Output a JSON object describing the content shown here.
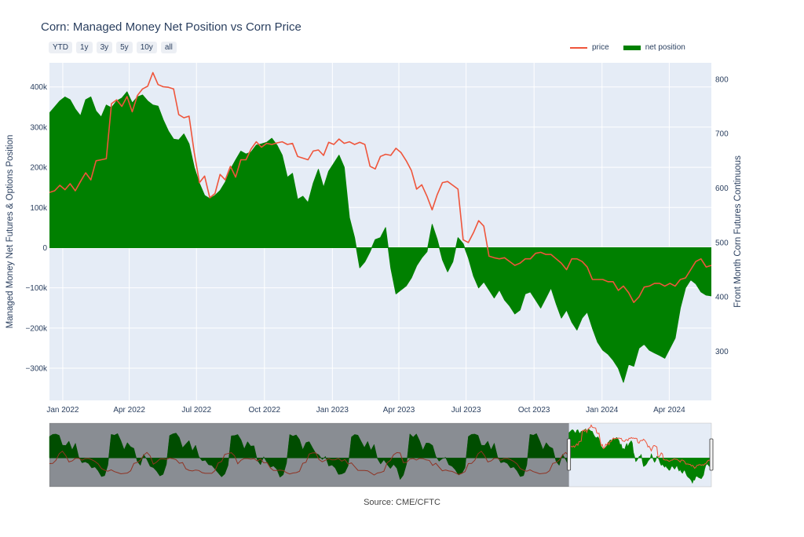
{
  "title": "Corn: Managed Money Net Position vs Corn Price",
  "range_buttons": [
    "YTD",
    "1y",
    "3y",
    "5y",
    "10y",
    "all"
  ],
  "legend": [
    {
      "name": "price",
      "color": "#ef553b"
    },
    {
      "name": "net position",
      "color": "#008000"
    }
  ],
  "source": "Source: CME/CFTC",
  "chart_data": {
    "type": "area",
    "x_axis": {
      "type": "date",
      "range": [
        "2021-12-14",
        "2024-05-28"
      ],
      "ticks": [
        {
          "date": "2022-01-01",
          "label": "Jan 2022"
        },
        {
          "date": "2022-04-01",
          "label": "Apr 2022"
        },
        {
          "date": "2022-07-01",
          "label": "Jul 2022"
        },
        {
          "date": "2022-10-01",
          "label": "Oct 2022"
        },
        {
          "date": "2023-01-01",
          "label": "Jan 2023"
        },
        {
          "date": "2023-04-01",
          "label": "Apr 2023"
        },
        {
          "date": "2023-07-01",
          "label": "Jul 2023"
        },
        {
          "date": "2023-10-01",
          "label": "Oct 2023"
        },
        {
          "date": "2024-01-01",
          "label": "Jan 2024"
        },
        {
          "date": "2024-04-01",
          "label": "Apr 2024"
        }
      ]
    },
    "y_left": {
      "label": "Managed Money Net Futures & Options Position",
      "range": [
        -380000,
        460000
      ],
      "ticks": [
        {
          "value": 400000,
          "label": "400k"
        },
        {
          "value": 300000,
          "label": "300k"
        },
        {
          "value": 200000,
          "label": "200k"
        },
        {
          "value": 100000,
          "label": "100k"
        },
        {
          "value": 0,
          "label": "0"
        },
        {
          "value": -100000,
          "label": "−100k"
        },
        {
          "value": -200000,
          "label": "−200k"
        },
        {
          "value": -300000,
          "label": "−300k"
        }
      ]
    },
    "y_right": {
      "label": "Front Month Corn Futures Continuous",
      "range": [
        210,
        830
      ],
      "ticks": [
        {
          "value": 800,
          "label": "800"
        },
        {
          "value": 700,
          "label": "700"
        },
        {
          "value": 600,
          "label": "600"
        },
        {
          "value": 500,
          "label": "500"
        },
        {
          "value": 400,
          "label": "400"
        },
        {
          "value": 300,
          "label": "300"
        }
      ]
    },
    "series": [
      {
        "name": "net position",
        "axis": "left",
        "type": "area",
        "color": "#008000",
        "x": [
          "2021-12-14",
          "2021-12-21",
          "2021-12-28",
          "2022-01-04",
          "2022-01-11",
          "2022-01-18",
          "2022-01-25",
          "2022-02-01",
          "2022-02-08",
          "2022-02-15",
          "2022-02-22",
          "2022-03-01",
          "2022-03-08",
          "2022-03-15",
          "2022-03-22",
          "2022-03-29",
          "2022-04-05",
          "2022-04-12",
          "2022-04-19",
          "2022-04-26",
          "2022-05-03",
          "2022-05-10",
          "2022-05-17",
          "2022-05-24",
          "2022-05-31",
          "2022-06-07",
          "2022-06-14",
          "2022-06-21",
          "2022-06-28",
          "2022-07-05",
          "2022-07-12",
          "2022-07-19",
          "2022-07-26",
          "2022-08-02",
          "2022-08-09",
          "2022-08-16",
          "2022-08-23",
          "2022-08-30",
          "2022-09-06",
          "2022-09-13",
          "2022-09-20",
          "2022-09-27",
          "2022-10-04",
          "2022-10-11",
          "2022-10-18",
          "2022-10-25",
          "2022-11-01",
          "2022-11-08",
          "2022-11-15",
          "2022-11-22",
          "2022-11-29",
          "2022-12-06",
          "2022-12-13",
          "2022-12-20",
          "2022-12-27",
          "2023-01-03",
          "2023-01-10",
          "2023-01-17",
          "2023-01-24",
          "2023-01-31",
          "2023-02-07",
          "2023-02-14",
          "2023-02-21",
          "2023-02-28",
          "2023-03-07",
          "2023-03-14",
          "2023-03-21",
          "2023-03-28",
          "2023-04-04",
          "2023-04-11",
          "2023-04-18",
          "2023-04-25",
          "2023-05-02",
          "2023-05-09",
          "2023-05-16",
          "2023-05-23",
          "2023-05-30",
          "2023-06-06",
          "2023-06-13",
          "2023-06-20",
          "2023-06-27",
          "2023-07-04",
          "2023-07-11",
          "2023-07-18",
          "2023-07-25",
          "2023-08-01",
          "2023-08-08",
          "2023-08-15",
          "2023-08-22",
          "2023-08-29",
          "2023-09-05",
          "2023-09-12",
          "2023-09-19",
          "2023-09-26",
          "2023-10-03",
          "2023-10-10",
          "2023-10-17",
          "2023-10-24",
          "2023-10-31",
          "2023-11-07",
          "2023-11-14",
          "2023-11-21",
          "2023-11-28",
          "2023-12-05",
          "2023-12-12",
          "2023-12-19",
          "2023-12-26",
          "2024-01-02",
          "2024-01-09",
          "2024-01-16",
          "2024-01-23",
          "2024-01-30",
          "2024-02-06",
          "2024-02-13",
          "2024-02-20",
          "2024-02-27",
          "2024-03-05",
          "2024-03-12",
          "2024-03-19",
          "2024-03-26",
          "2024-04-02",
          "2024-04-09",
          "2024-04-16",
          "2024-04-23",
          "2024-04-30",
          "2024-05-07",
          "2024-05-14",
          "2024-05-21",
          "2024-05-28"
        ],
        "values": [
          335000,
          350000,
          365000,
          375000,
          368000,
          345000,
          328000,
          368000,
          375000,
          340000,
          325000,
          355000,
          348000,
          365000,
          372000,
          388000,
          360000,
          375000,
          380000,
          365000,
          355000,
          352000,
          318000,
          290000,
          270000,
          268000,
          283000,
          258000,
          200000,
          160000,
          130000,
          122000,
          130000,
          142000,
          163000,
          195000,
          218000,
          240000,
          233000,
          238000,
          255000,
          258000,
          262000,
          272000,
          255000,
          230000,
          175000,
          185000,
          120000,
          128000,
          112000,
          160000,
          195000,
          150000,
          190000,
          210000,
          230000,
          200000,
          75000,
          25000,
          -50000,
          -35000,
          -10000,
          20000,
          25000,
          50000,
          -50000,
          -115000,
          -105000,
          -95000,
          -75000,
          -45000,
          -25000,
          -10000,
          58000,
          20000,
          -30000,
          -60000,
          -35000,
          25000,
          10000,
          -25000,
          -70000,
          -100000,
          -85000,
          -105000,
          -125000,
          -105000,
          -130000,
          -145000,
          -165000,
          -155000,
          -115000,
          -110000,
          -130000,
          -150000,
          -125000,
          -100000,
          -140000,
          -175000,
          -155000,
          -185000,
          -205000,
          -175000,
          -160000,
          -200000,
          -235000,
          -255000,
          -265000,
          -280000,
          -300000,
          -335000,
          -290000,
          -295000,
          -250000,
          -240000,
          -255000,
          -262000,
          -268000,
          -275000,
          -250000,
          -225000,
          -150000,
          -100000,
          -80000,
          -90000,
          -110000,
          -118000,
          -120000
        ]
      },
      {
        "name": "price",
        "axis": "right",
        "type": "line",
        "color": "#ef553b",
        "x": [
          "2021-12-14",
          "2021-12-21",
          "2021-12-28",
          "2022-01-04",
          "2022-01-11",
          "2022-01-18",
          "2022-01-25",
          "2022-02-01",
          "2022-02-08",
          "2022-02-15",
          "2022-02-22",
          "2022-03-01",
          "2022-03-08",
          "2022-03-15",
          "2022-03-22",
          "2022-03-29",
          "2022-04-05",
          "2022-04-12",
          "2022-04-19",
          "2022-04-26",
          "2022-05-03",
          "2022-05-10",
          "2022-05-17",
          "2022-05-24",
          "2022-05-31",
          "2022-06-07",
          "2022-06-14",
          "2022-06-21",
          "2022-06-28",
          "2022-07-05",
          "2022-07-12",
          "2022-07-19",
          "2022-07-26",
          "2022-08-02",
          "2022-08-09",
          "2022-08-16",
          "2022-08-23",
          "2022-08-30",
          "2022-09-06",
          "2022-09-13",
          "2022-09-20",
          "2022-09-27",
          "2022-10-04",
          "2022-10-11",
          "2022-10-18",
          "2022-10-25",
          "2022-11-01",
          "2022-11-08",
          "2022-11-15",
          "2022-11-22",
          "2022-11-29",
          "2022-12-06",
          "2022-12-13",
          "2022-12-20",
          "2022-12-27",
          "2023-01-03",
          "2023-01-10",
          "2023-01-17",
          "2023-01-24",
          "2023-01-31",
          "2023-02-07",
          "2023-02-14",
          "2023-02-21",
          "2023-02-28",
          "2023-03-07",
          "2023-03-14",
          "2023-03-21",
          "2023-03-28",
          "2023-04-04",
          "2023-04-11",
          "2023-04-18",
          "2023-04-25",
          "2023-05-02",
          "2023-05-09",
          "2023-05-16",
          "2023-05-23",
          "2023-05-30",
          "2023-06-06",
          "2023-06-13",
          "2023-06-20",
          "2023-06-27",
          "2023-07-04",
          "2023-07-11",
          "2023-07-18",
          "2023-07-25",
          "2023-08-01",
          "2023-08-08",
          "2023-08-15",
          "2023-08-22",
          "2023-08-29",
          "2023-09-05",
          "2023-09-12",
          "2023-09-19",
          "2023-09-26",
          "2023-10-03",
          "2023-10-10",
          "2023-10-17",
          "2023-10-24",
          "2023-10-31",
          "2023-11-07",
          "2023-11-14",
          "2023-11-21",
          "2023-11-28",
          "2023-12-05",
          "2023-12-12",
          "2023-12-19",
          "2023-12-26",
          "2024-01-02",
          "2024-01-09",
          "2024-01-16",
          "2024-01-23",
          "2024-01-30",
          "2024-02-06",
          "2024-02-13",
          "2024-02-20",
          "2024-02-27",
          "2024-03-05",
          "2024-03-12",
          "2024-03-19",
          "2024-03-26",
          "2024-04-02",
          "2024-04-09",
          "2024-04-16",
          "2024-04-23",
          "2024-04-30",
          "2024-05-07",
          "2024-05-14",
          "2024-05-21",
          "2024-05-28"
        ],
        "values": [
          592,
          595,
          605,
          597,
          608,
          595,
          612,
          628,
          615,
          650,
          652,
          654,
          755,
          762,
          750,
          768,
          740,
          770,
          782,
          787,
          812,
          790,
          786,
          785,
          782,
          735,
          729,
          732,
          665,
          610,
          622,
          582,
          590,
          625,
          615,
          640,
          620,
          652,
          652,
          672,
          685,
          675,
          682,
          680,
          683,
          685,
          680,
          682,
          658,
          655,
          652,
          668,
          670,
          660,
          684,
          680,
          690,
          682,
          685,
          680,
          684,
          680,
          640,
          635,
          658,
          662,
          660,
          673,
          665,
          650,
          632,
          598,
          606,
          585,
          560,
          588,
          610,
          612,
          605,
          598,
          505,
          500,
          518,
          540,
          530,
          475,
          472,
          470,
          472,
          465,
          458,
          462,
          470,
          470,
          480,
          482,
          478,
          478,
          470,
          462,
          450,
          470,
          470,
          465,
          455,
          432,
          432,
          432,
          428,
          428,
          412,
          420,
          408,
          390,
          400,
          418,
          420,
          425,
          425,
          420,
          425,
          420,
          432,
          435,
          450,
          465,
          470,
          455,
          458
        ]
      }
    ],
    "range_slider": {
      "x_range": [
        "2013-01-01",
        "2024-05-28"
      ],
      "selected": [
        "2021-12-14",
        "2024-05-28"
      ]
    },
    "grid": true,
    "legend_position": "top-right"
  }
}
